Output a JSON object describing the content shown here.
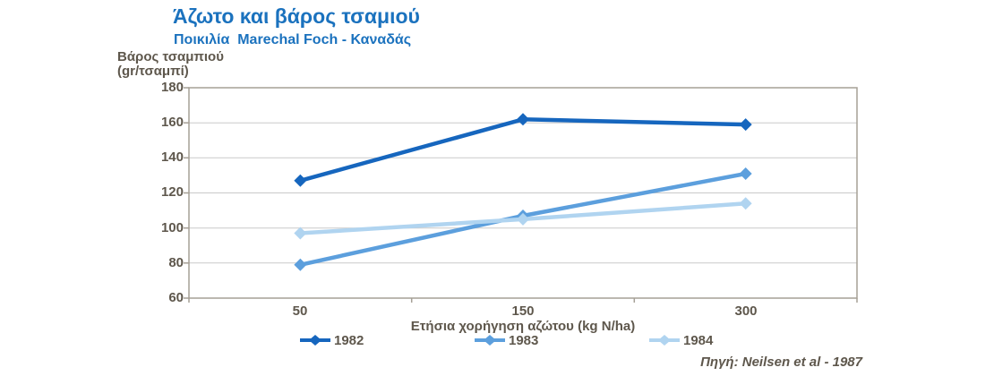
{
  "header": {
    "title": "Άζωτο και βάρος τσαμιού",
    "subtitle": "Ποικιλία  Marechal Foch - Καναδάς"
  },
  "colors": {
    "title_blue": "#1B72BE",
    "label_gray": "#5E574C",
    "gridline": "#C9C9C9",
    "frame": "#A6A096",
    "series_1982": "#1666BE",
    "series_1983": "#5C9FDD",
    "series_1984": "#B0D4F0"
  },
  "chart_data": {
    "type": "line",
    "title": "Άζωτο και βάρος τσαμιού",
    "subtitle": "Ποικιλία  Marechal Foch - Καναδάς",
    "categories": [
      "50",
      "150",
      "300"
    ],
    "series": [
      {
        "name": "1982",
        "color": "#1666BE",
        "values": [
          127,
          162,
          159
        ]
      },
      {
        "name": "1983",
        "color": "#5C9FDD",
        "values": [
          79,
          107,
          131
        ]
      },
      {
        "name": "1984",
        "color": "#B0D4F0",
        "values": [
          97,
          105,
          114
        ]
      }
    ],
    "xlabel": "Ετήσια χορήγηση αζώτου (kg N/ha)",
    "ylabel_line1": "Βάρος τσαμπιού",
    "ylabel_line2": "(gr/τσαμπί)",
    "ylim": [
      60,
      180
    ],
    "yticks": [
      180,
      160,
      140,
      120,
      100,
      80,
      60
    ],
    "grid": true,
    "legend_position": "bottom",
    "marker": "diamond",
    "source": "Πηγή: Neilsen et al - 1987"
  }
}
